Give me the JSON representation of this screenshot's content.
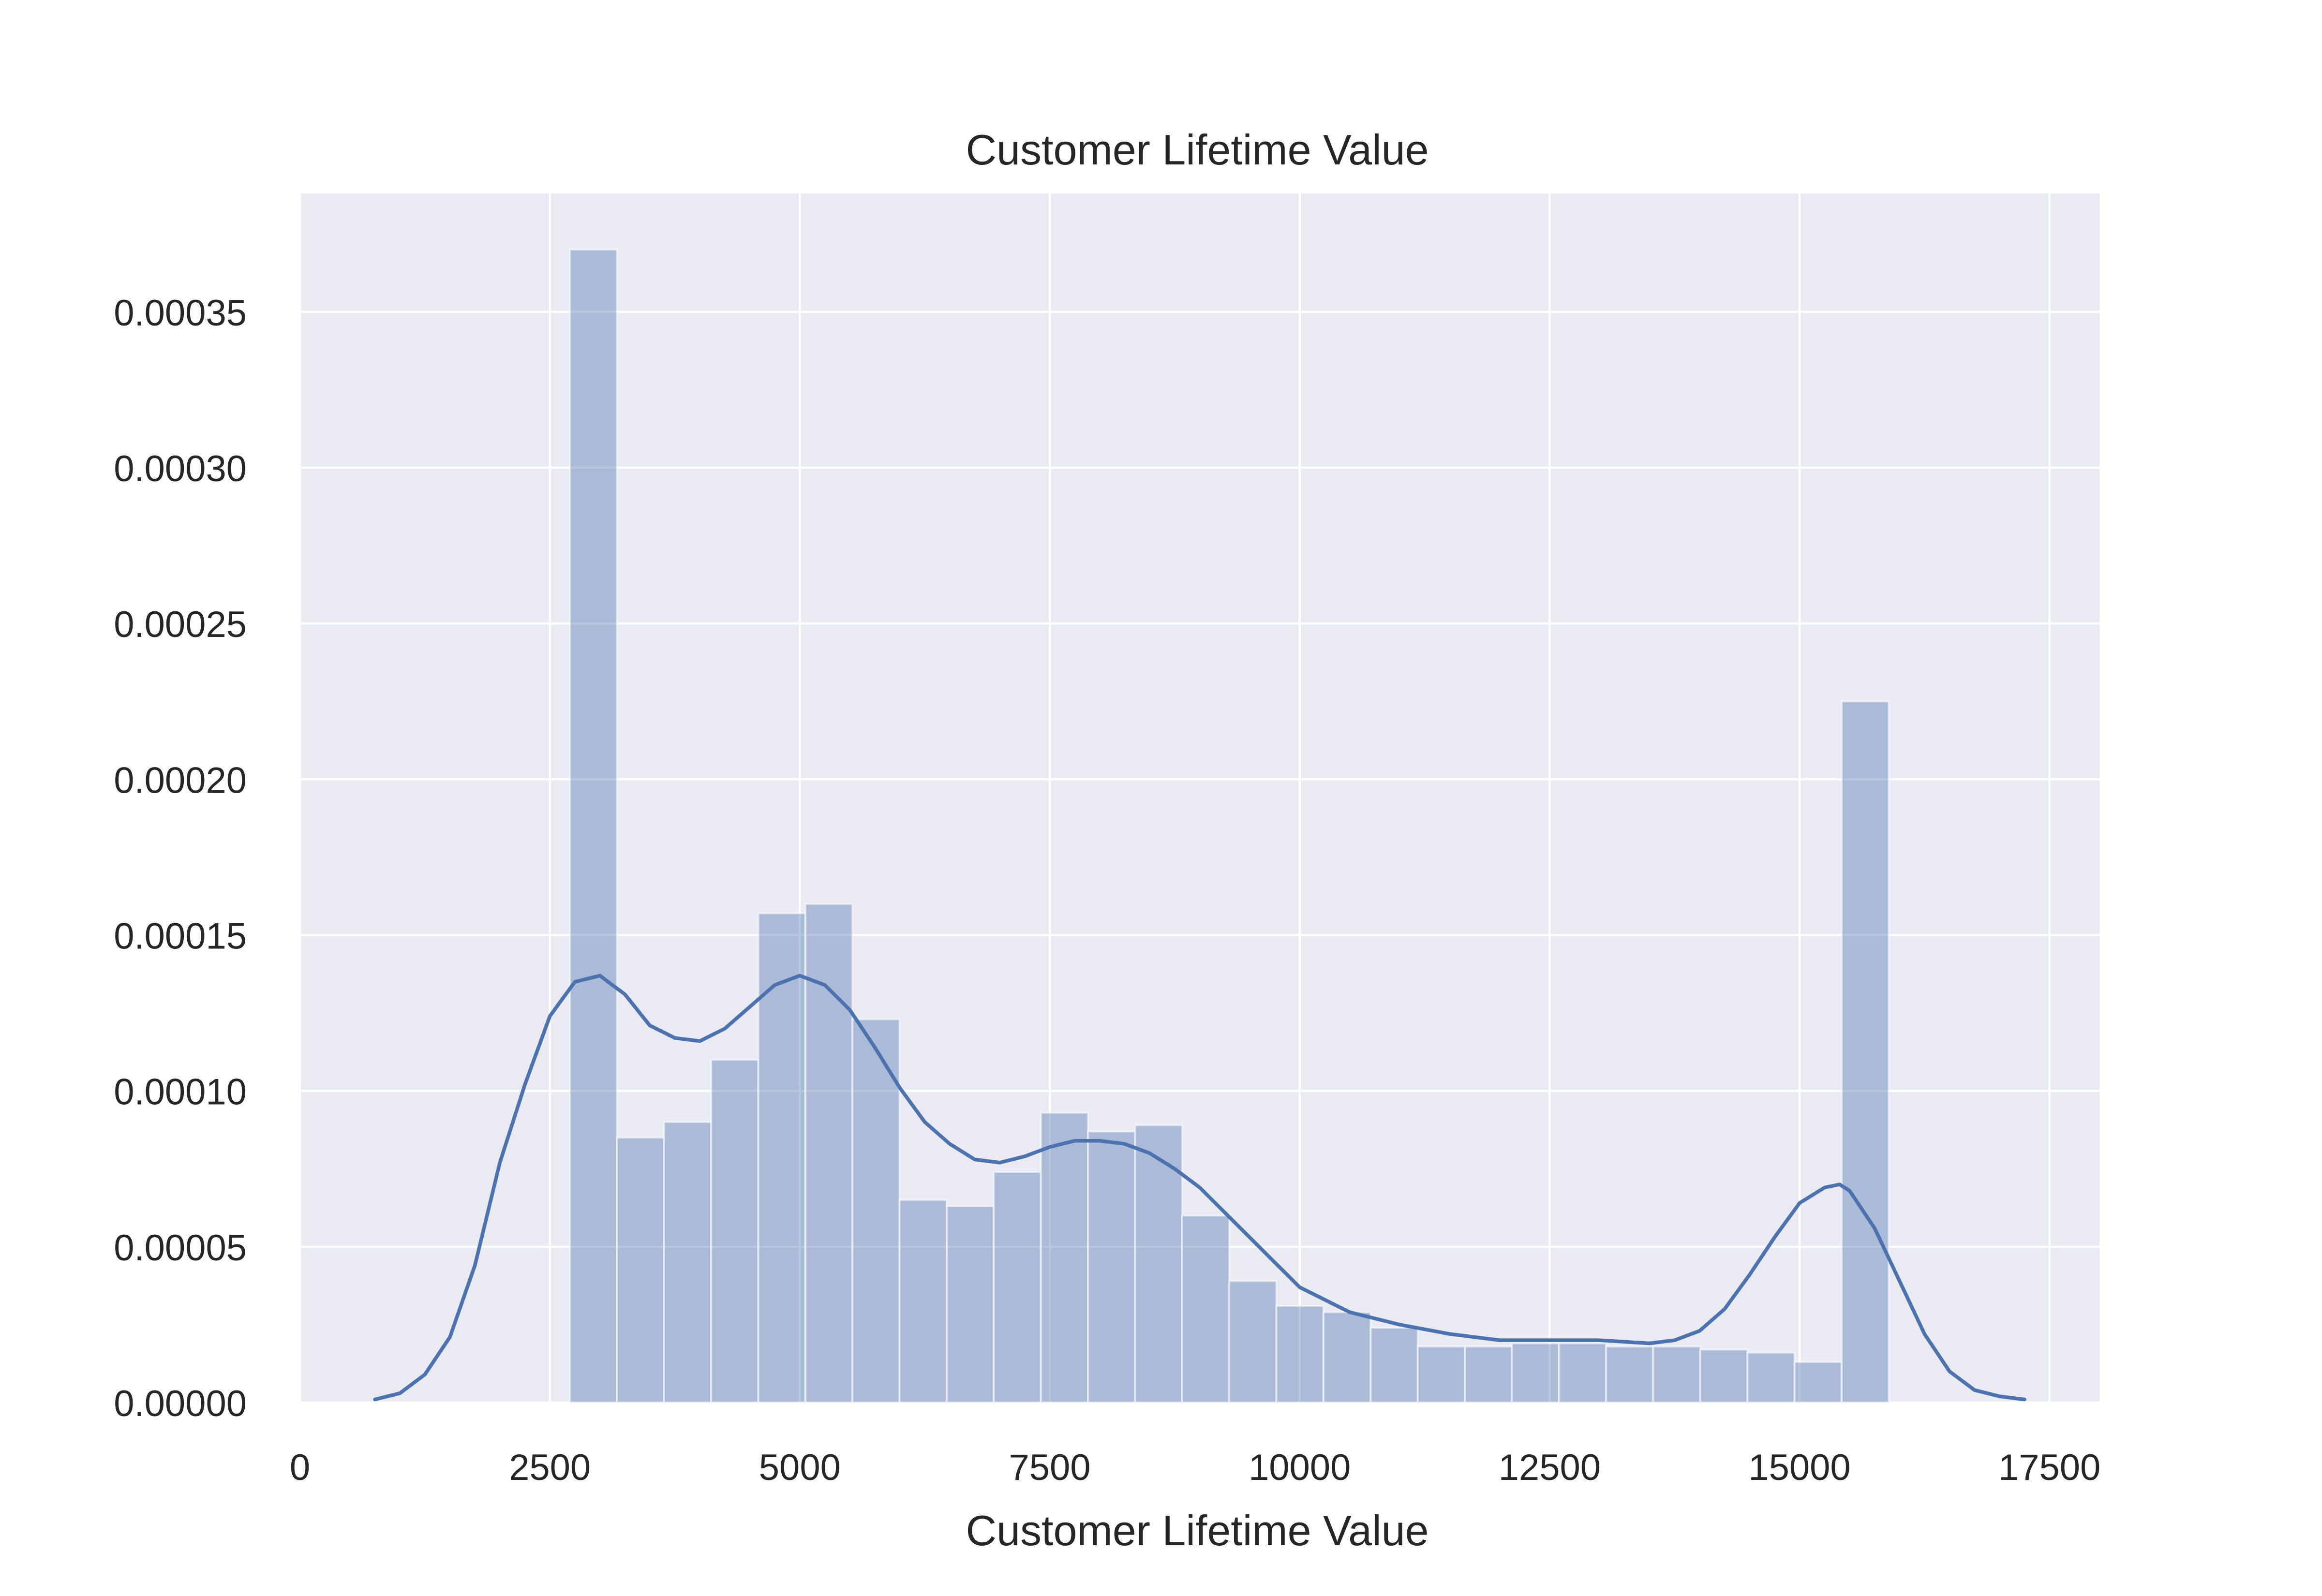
{
  "chart_data": {
    "type": "bar",
    "title": "Customer Lifetime Value",
    "xlabel": "Customer Lifetime Value",
    "ylabel": "",
    "xlim": [
      0,
      18000
    ],
    "ylim": [
      0,
      0.000388
    ],
    "grid": true,
    "x_ticks": [
      0,
      2500,
      5000,
      7500,
      10000,
      12500,
      15000,
      17500
    ],
    "x_tick_labels": [
      "0",
      "2500",
      "5000",
      "7500",
      "10000",
      "12500",
      "15000",
      "17500"
    ],
    "y_ticks": [
      0,
      5e-05,
      0.0001,
      0.00015,
      0.0002,
      0.00025,
      0.0003,
      0.00035
    ],
    "y_tick_labels": [
      "0.00000",
      "0.00005",
      "0.00010",
      "0.00015",
      "0.00020",
      "0.00025",
      "0.00030",
      "0.00035"
    ],
    "histogram": {
      "bin_edges": [
        2700,
        3171,
        3642,
        4114,
        4585,
        5056,
        5527,
        5998,
        6469,
        6940,
        7412,
        7883,
        8354,
        8825,
        9296,
        9767,
        10238,
        10710,
        11181,
        11652,
        12123,
        12594,
        13065,
        13536,
        14008,
        14479,
        14950,
        15421
      ],
      "densities": [
        0.00037,
        8.5e-05,
        9e-05,
        0.00011,
        0.000157,
        0.00016,
        0.000123,
        6.5e-05,
        6.3e-05,
        7.4e-05,
        9.3e-05,
        8.7e-05,
        8.9e-05,
        6e-05,
        3.9e-05,
        3.1e-05,
        2.9e-05,
        2.4e-05,
        1.8e-05,
        1.8e-05,
        1.9e-05,
        1.9e-05,
        1.8e-05,
        1.8e-05,
        1.7e-05,
        1.6e-05,
        1.3e-05,
        0.000225
      ]
    },
    "kde": {
      "x": [
        750,
        1000,
        1250,
        1500,
        1750,
        2000,
        2250,
        2500,
        2750,
        3000,
        3250,
        3500,
        3750,
        4000,
        4250,
        4500,
        4750,
        5000,
        5250,
        5500,
        5750,
        6000,
        6250,
        6500,
        6750,
        7000,
        7250,
        7500,
        7750,
        8000,
        8250,
        8500,
        8750,
        9000,
        9250,
        9500,
        9750,
        10000,
        10500,
        11000,
        11500,
        12000,
        12500,
        13000,
        13500,
        13750,
        14000,
        14250,
        14500,
        14750,
        15000,
        15250,
        15400,
        15500,
        15750,
        16000,
        16250,
        16500,
        16750,
        17000,
        17250
      ],
      "y": [
        1e-06,
        3e-06,
        9e-06,
        2.1e-05,
        4.4e-05,
        7.7e-05,
        0.000102,
        0.000124,
        0.000135,
        0.000137,
        0.000131,
        0.000121,
        0.000117,
        0.000116,
        0.00012,
        0.000127,
        0.000134,
        0.000137,
        0.000134,
        0.000126,
        0.000114,
        0.000101,
        9e-05,
        8.3e-05,
        7.8e-05,
        7.7e-05,
        7.9e-05,
        8.2e-05,
        8.4e-05,
        8.4e-05,
        8.3e-05,
        8e-05,
        7.5e-05,
        6.9e-05,
        6.1e-05,
        5.3e-05,
        4.5e-05,
        3.7e-05,
        2.9e-05,
        2.5e-05,
        2.2e-05,
        2e-05,
        2e-05,
        2e-05,
        1.9e-05,
        2e-05,
        2.3e-05,
        3e-05,
        4.1e-05,
        5.3e-05,
        6.4e-05,
        6.9e-05,
        7e-05,
        6.8e-05,
        5.6e-05,
        3.9e-05,
        2.2e-05,
        1e-05,
        4e-06,
        2e-06,
        1e-06
      ]
    }
  }
}
